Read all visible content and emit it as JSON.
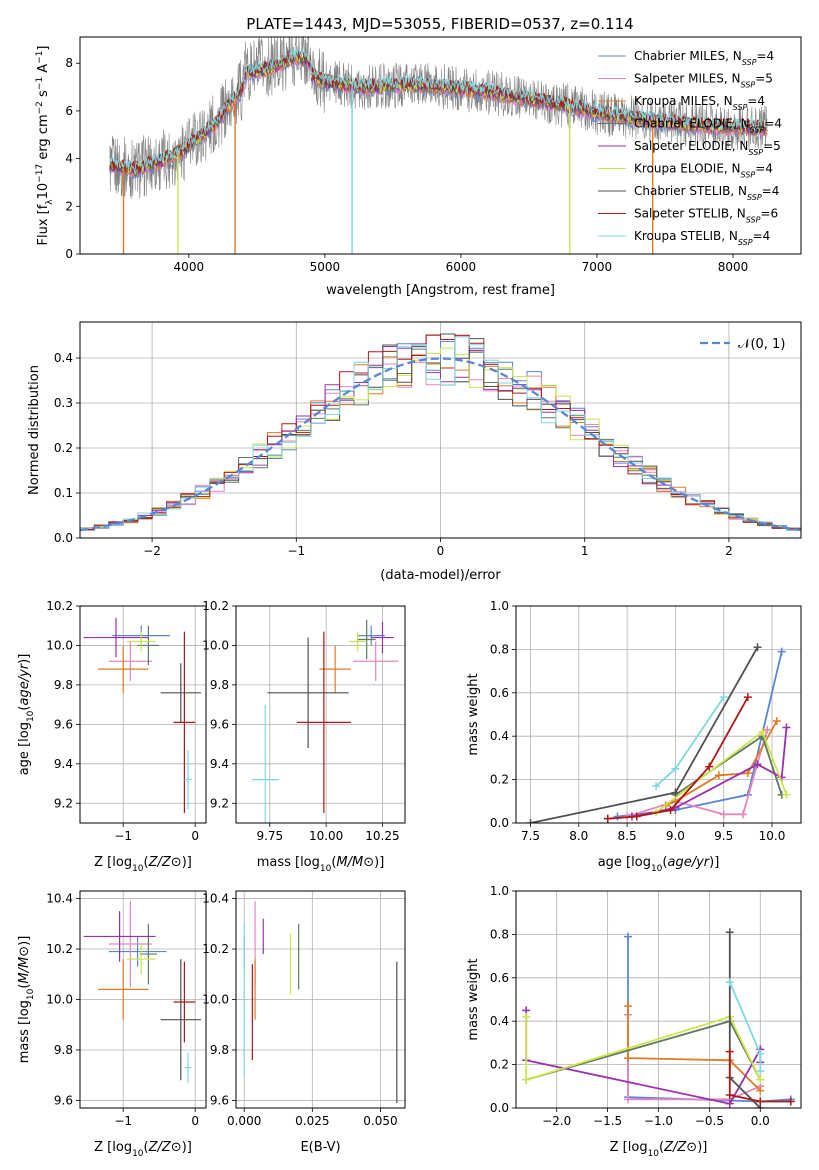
{
  "figure_title": "PLATE=1443, MJD=53055, FIBERID=0537, z=0.114",
  "colors": {
    "Chabrier MILES": "#5b86d6",
    "Salpeter MILES": "#e887bf",
    "Kroupa MILES": "#e07b26",
    "Chabrier ELODIE": "#5f7a5f",
    "Salpeter ELODIE": "#9b30b0",
    "Kroupa ELODIE": "#cde54b",
    "Chabrier STELIB": "#505050",
    "Salpeter STELIB": "#b01818",
    "Kroupa STELIB": "#7fd8e0",
    "data": "#808080"
  },
  "chart_data": [
    {
      "id": "spectrum",
      "type": "line",
      "xlabel": "wavelength [Angstrom, rest frame]",
      "ylabel_parts": [
        "Flux [f",
        "λ",
        "10",
        "−17",
        " erg cm",
        "−2",
        " s",
        "−1",
        " A",
        "−1",
        "]"
      ],
      "xlim": [
        3200,
        8500
      ],
      "ylim": [
        0,
        9.1
      ],
      "xticks": [
        4000,
        5000,
        6000,
        7000,
        8000
      ],
      "yticks": [
        0,
        2,
        4,
        6,
        8
      ],
      "grid": false,
      "legend_position": "top-right",
      "continuum_points": [
        [
          3420,
          3.7
        ],
        [
          3600,
          3.55
        ],
        [
          3800,
          3.9
        ],
        [
          3950,
          4.3
        ],
        [
          4050,
          4.8
        ],
        [
          4200,
          5.5
        ],
        [
          4400,
          7.0
        ],
        [
          4600,
          7.3
        ],
        [
          4800,
          7.8
        ],
        [
          5000,
          7.2
        ],
        [
          5300,
          7.0
        ],
        [
          5600,
          7.1
        ],
        [
          5900,
          7.0
        ],
        [
          6200,
          6.8
        ],
        [
          6500,
          6.5
        ],
        [
          6800,
          6.2
        ],
        [
          7100,
          5.8
        ],
        [
          7400,
          5.6
        ],
        [
          7700,
          5.4
        ],
        [
          8000,
          5.3
        ],
        [
          8250,
          5.25
        ]
      ],
      "dips": [
        [
          3520,
          0
        ],
        [
          3920,
          0
        ],
        [
          4340,
          0
        ],
        [
          5200,
          0
        ],
        [
          6800,
          0
        ],
        [
          7410,
          0
        ]
      ],
      "series": [
        {
          "name": "Chabrier MILES",
          "nssp": "4"
        },
        {
          "name": "Salpeter MILES",
          "nssp": "5"
        },
        {
          "name": "Kroupa MILES",
          "nssp": "4"
        },
        {
          "name": "Chabrier ELODIE",
          "nssp": "4"
        },
        {
          "name": "Salpeter ELODIE",
          "nssp": "5"
        },
        {
          "name": "Kroupa ELODIE",
          "nssp": "4"
        },
        {
          "name": "Chabrier STELIB",
          "nssp": "4"
        },
        {
          "name": "Salpeter STELIB",
          "nssp": "6"
        },
        {
          "name": "Kroupa STELIB",
          "nssp": "4"
        }
      ]
    },
    {
      "id": "residuals",
      "type": "histogram",
      "xlabel": "(data-model)/error",
      "ylabel": "Normed distribution",
      "xlim": [
        -2.5,
        2.5
      ],
      "ylim": [
        0,
        0.48
      ],
      "xticks": [
        -2,
        -1,
        0,
        1,
        2
      ],
      "yticks": [
        0.0,
        0.1,
        0.2,
        0.3,
        0.4
      ],
      "grid": true,
      "legend": "𝒩(0, 1)",
      "legend_position": "top-right",
      "bin_width": 0.1
    },
    {
      "id": "age_vs_Z",
      "type": "errorbar",
      "xlabel": "Z [log10(Z/Z⊙)]",
      "ylabel": "age  [log10(age/yr)]",
      "xlim": [
        -1.6,
        0.15
      ],
      "ylim": [
        9.1,
        10.2
      ],
      "xticks": [
        -1,
        0
      ],
      "yticks": [
        9.2,
        9.4,
        9.6,
        9.8,
        10.0,
        10.2
      ],
      "grid": true,
      "points": [
        {
          "series": "Chabrier MILES",
          "x": -0.75,
          "xerr": 0.4,
          "y": 10.05,
          "yerr": 0.05
        },
        {
          "series": "Salpeter MILES",
          "x": -0.9,
          "xerr": 0.3,
          "y": 9.92,
          "yerr": 0.1
        },
        {
          "series": "Kroupa MILES",
          "x": -1.0,
          "xerr": 0.35,
          "y": 9.88,
          "yerr": 0.12
        },
        {
          "series": "Chabrier ELODIE",
          "x": -0.65,
          "xerr": 0.15,
          "y": 10.0,
          "yerr": 0.1
        },
        {
          "series": "Salpeter ELODIE",
          "x": -1.1,
          "xerr": 0.45,
          "y": 10.04,
          "yerr": 0.1
        },
        {
          "series": "Kroupa ELODIE",
          "x": -0.75,
          "xerr": 0.2,
          "y": 10.02,
          "yerr": 0.05
        },
        {
          "series": "Chabrier STELIB",
          "x": -0.2,
          "xerr": 0.28,
          "y": 9.76,
          "yerr": 0.15
        },
        {
          "series": "Salpeter STELIB",
          "x": -0.15,
          "xerr": 0.15,
          "y": 9.61,
          "yerr": 0.46
        },
        {
          "series": "Kroupa STELIB",
          "x": -0.1,
          "xerr": 0.05,
          "y": 9.32,
          "yerr": 0.15
        }
      ]
    },
    {
      "id": "age_vs_mass",
      "type": "errorbar",
      "xlabel": "mass [log10(M/M⊙)]",
      "xlim": [
        9.6,
        10.35
      ],
      "ylim": [
        9.1,
        10.2
      ],
      "xticks": [
        9.75,
        10.0,
        10.25
      ],
      "xtick_labels": [
        "9.75",
        "10.00",
        "10.25"
      ],
      "yticks": [
        9.2,
        9.4,
        9.6,
        9.8,
        10.0,
        10.2
      ],
      "grid": true,
      "points": [
        {
          "series": "Chabrier MILES",
          "x": 10.2,
          "xerr": 0.06,
          "y": 10.05,
          "yerr": 0.05
        },
        {
          "series": "Salpeter MILES",
          "x": 10.22,
          "xerr": 0.1,
          "y": 9.92,
          "yerr": 0.1
        },
        {
          "series": "Kroupa MILES",
          "x": 10.04,
          "xerr": 0.07,
          "y": 9.88,
          "yerr": 0.12
        },
        {
          "series": "Chabrier ELODIE",
          "x": 10.18,
          "xerr": 0.04,
          "y": 10.03,
          "yerr": 0.1
        },
        {
          "series": "Salpeter ELODIE",
          "x": 10.25,
          "xerr": 0.05,
          "y": 10.04,
          "yerr": 0.08
        },
        {
          "series": "Kroupa ELODIE",
          "x": 10.14,
          "xerr": 0.04,
          "y": 10.02,
          "yerr": 0.05
        },
        {
          "series": "Chabrier STELIB",
          "x": 9.92,
          "xerr": 0.18,
          "y": 9.76,
          "yerr": 0.28
        },
        {
          "series": "Salpeter STELIB",
          "x": 9.99,
          "xerr": 0.12,
          "y": 9.61,
          "yerr": 0.46
        },
        {
          "series": "Kroupa STELIB",
          "x": 9.73,
          "xerr": 0.06,
          "y": 9.32,
          "yerr": 0.38
        }
      ]
    },
    {
      "id": "weight_vs_age",
      "type": "line",
      "xlabel": "age  [log10(age/yr)]",
      "ylabel": "mass weight",
      "xlim": [
        7.35,
        10.3
      ],
      "ylim": [
        0,
        1.0
      ],
      "xticks": [
        7.5,
        8.0,
        8.5,
        9.0,
        9.5,
        10.0
      ],
      "yticks": [
        0.0,
        0.2,
        0.4,
        0.6,
        0.8,
        1.0
      ],
      "grid": true,
      "series": [
        {
          "name": "Chabrier MILES",
          "points": [
            [
              8.4,
              0.03
            ],
            [
              9.0,
              0.06
            ],
            [
              9.75,
              0.13
            ],
            [
              10.1,
              0.79
            ]
          ]
        },
        {
          "name": "Salpeter MILES",
          "points": [
            [
              8.5,
              0.03
            ],
            [
              9.0,
              0.1
            ],
            [
              9.5,
              0.04
            ],
            [
              9.7,
              0.04
            ],
            [
              9.95,
              0.43
            ]
          ]
        },
        {
          "name": "Kroupa MILES",
          "points": [
            [
              8.9,
              0.08
            ],
            [
              9.0,
              0.1
            ],
            [
              9.45,
              0.22
            ],
            [
              9.75,
              0.23
            ],
            [
              10.05,
              0.47
            ]
          ]
        },
        {
          "name": "Chabrier ELODIE",
          "points": [
            [
              9.0,
              0.13
            ],
            [
              9.9,
              0.4
            ],
            [
              10.1,
              0.13
            ]
          ]
        },
        {
          "name": "Salpeter ELODIE",
          "points": [
            [
              8.55,
              0.03
            ],
            [
              9.0,
              0.07
            ],
            [
              9.85,
              0.27
            ],
            [
              10.1,
              0.21
            ],
            [
              10.15,
              0.44
            ]
          ]
        },
        {
          "name": "Kroupa ELODIE",
          "points": [
            [
              8.8,
              0.05
            ],
            [
              9.9,
              0.42
            ],
            [
              10.15,
              0.13
            ]
          ]
        },
        {
          "name": "Chabrier STELIB",
          "points": [
            [
              7.5,
              0.0
            ],
            [
              9.0,
              0.14
            ],
            [
              9.85,
              0.81
            ]
          ]
        },
        {
          "name": "Salpeter STELIB",
          "points": [
            [
              8.3,
              0.02
            ],
            [
              8.6,
              0.03
            ],
            [
              8.95,
              0.06
            ],
            [
              9.35,
              0.26
            ],
            [
              9.75,
              0.58
            ]
          ]
        },
        {
          "name": "Kroupa STELIB",
          "points": [
            [
              8.8,
              0.17
            ],
            [
              9.0,
              0.25
            ],
            [
              9.5,
              0.58
            ]
          ]
        }
      ]
    },
    {
      "id": "mass_vs_Z",
      "type": "errorbar",
      "xlabel": "Z [log10(Z/Z⊙)]",
      "ylabel": "mass [log10(M/M⊙)]",
      "xlim": [
        -1.6,
        0.15
      ],
      "ylim": [
        9.57,
        10.43
      ],
      "xticks": [
        -1,
        0
      ],
      "yticks": [
        9.6,
        9.8,
        10.0,
        10.2,
        10.4
      ],
      "grid": true,
      "points": [
        {
          "series": "Chabrier MILES",
          "x": -0.8,
          "xerr": 0.4,
          "y": 10.19,
          "yerr": 0.06
        },
        {
          "series": "Salpeter MILES",
          "x": -0.9,
          "xerr": 0.3,
          "y": 10.22,
          "yerr": 0.17
        },
        {
          "series": "Kroupa MILES",
          "x": -1.0,
          "xerr": 0.35,
          "y": 10.04,
          "yerr": 0.12
        },
        {
          "series": "Chabrier ELODIE",
          "x": -0.65,
          "xerr": 0.12,
          "y": 10.18,
          "yerr": 0.12
        },
        {
          "series": "Salpeter ELODIE",
          "x": -1.05,
          "xerr": 0.5,
          "y": 10.25,
          "yerr": 0.1
        },
        {
          "series": "Kroupa ELODIE",
          "x": -0.75,
          "xerr": 0.2,
          "y": 10.16,
          "yerr": 0.06
        },
        {
          "series": "Chabrier STELIB",
          "x": -0.2,
          "xerr": 0.28,
          "y": 9.92,
          "yerr": 0.24
        },
        {
          "series": "Salpeter STELIB",
          "x": -0.15,
          "xerr": 0.15,
          "y": 9.99,
          "yerr": 0.16
        },
        {
          "series": "Kroupa STELIB",
          "x": -0.1,
          "xerr": 0.05,
          "y": 9.73,
          "yerr": 0.06
        }
      ]
    },
    {
      "id": "mass_vs_ebv",
      "type": "errorbar",
      "xlabel": "E(B-V)",
      "xlim": [
        -0.003,
        0.059
      ],
      "ylim": [
        9.57,
        10.43
      ],
      "xticks": [
        0.0,
        0.025,
        0.05
      ],
      "xtick_labels": [
        "0.000",
        "0.025",
        "0.050"
      ],
      "yticks": [
        9.6,
        9.8,
        10.0,
        10.2,
        10.4
      ],
      "grid": true,
      "points": [
        {
          "series": "Chabrier MILES",
          "x": 0.0,
          "xerr": 0,
          "y": 10.19,
          "yerr": 0.06
        },
        {
          "series": "Salpeter MILES",
          "x": 0.004,
          "xerr": 0,
          "y": 10.22,
          "yerr": 0.17
        },
        {
          "series": "Kroupa MILES",
          "x": 0.004,
          "xerr": 0,
          "y": 10.04,
          "yerr": 0.12
        },
        {
          "series": "Chabrier ELODIE",
          "x": 0.02,
          "xerr": 0,
          "y": 10.17,
          "yerr": 0.13
        },
        {
          "series": "Salpeter ELODIE",
          "x": 0.007,
          "xerr": 0,
          "y": 10.25,
          "yerr": 0.07
        },
        {
          "series": "Kroupa ELODIE",
          "x": 0.017,
          "xerr": 0,
          "y": 10.14,
          "yerr": 0.12
        },
        {
          "series": "Chabrier STELIB",
          "x": 0.056,
          "xerr": 0,
          "y": 9.87,
          "yerr": 0.28
        },
        {
          "series": "Salpeter STELIB",
          "x": 0.003,
          "xerr": 0,
          "y": 9.95,
          "yerr": 0.19
        },
        {
          "series": "Kroupa STELIB",
          "x": 0.0,
          "xerr": 0,
          "y": 10.0,
          "yerr": 0.3
        }
      ]
    },
    {
      "id": "weight_vs_Z",
      "type": "line",
      "xlabel": "Z [log10(Z/Z⊙)]",
      "ylabel": "mass weight",
      "xlim": [
        -2.4,
        0.4
      ],
      "ylim": [
        0,
        1.0
      ],
      "xticks": [
        -2.0,
        -1.5,
        -1.0,
        -0.5,
        0.0
      ],
      "yticks": [
        0.0,
        0.2,
        0.4,
        0.6,
        0.8,
        1.0
      ],
      "grid": true,
      "series": [
        {
          "name": "Chabrier MILES",
          "points": [
            [
              -1.3,
              0.79
            ],
            [
              -1.3,
              0.05
            ],
            [
              0.0,
              0.03
            ],
            [
              0.3,
              0.04
            ]
          ]
        },
        {
          "name": "Salpeter MILES",
          "points": [
            [
              -1.3,
              0.43
            ],
            [
              -1.3,
              0.04
            ],
            [
              -0.3,
              0.04
            ],
            [
              0.0,
              0.1
            ]
          ]
        },
        {
          "name": "Kroupa MILES",
          "points": [
            [
              -1.3,
              0.47
            ],
            [
              -1.3,
              0.23
            ],
            [
              -0.3,
              0.22
            ],
            [
              0.0,
              0.08
            ]
          ]
        },
        {
          "name": "Chabrier ELODIE",
          "points": [
            [
              -2.3,
              0.13
            ],
            [
              -0.3,
              0.4
            ],
            [
              0.0,
              0.13
            ]
          ]
        },
        {
          "name": "Salpeter ELODIE",
          "points": [
            [
              -2.3,
              0.45
            ],
            [
              -2.3,
              0.22
            ],
            [
              -0.3,
              0.02
            ],
            [
              0.0,
              0.27
            ],
            [
              0.0,
              0.21
            ]
          ]
        },
        {
          "name": "Kroupa ELODIE",
          "points": [
            [
              -2.3,
              0.42
            ],
            [
              -2.3,
              0.13
            ],
            [
              -0.3,
              0.42
            ],
            [
              0.0,
              0.13
            ]
          ]
        },
        {
          "name": "Chabrier STELIB",
          "points": [
            [
              -0.3,
              0.81
            ],
            [
              -0.3,
              0.14
            ],
            [
              0.0,
              0.0
            ]
          ]
        },
        {
          "name": "Salpeter STELIB",
          "points": [
            [
              -0.3,
              0.26
            ],
            [
              -0.3,
              0.06
            ],
            [
              0.0,
              0.03
            ],
            [
              0.3,
              0.03
            ]
          ]
        },
        {
          "name": "Kroupa STELIB",
          "points": [
            [
              -0.3,
              0.58
            ],
            [
              0.0,
              0.25
            ],
            [
              0.0,
              0.17
            ]
          ]
        }
      ]
    }
  ]
}
